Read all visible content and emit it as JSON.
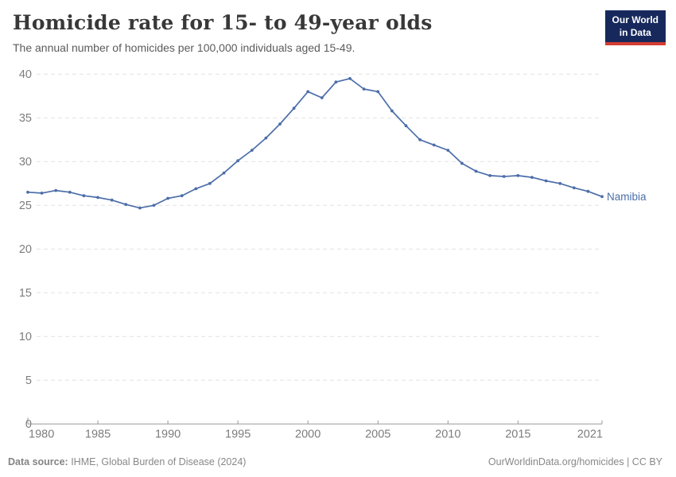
{
  "header": {
    "title": "Homicide rate for 15- to 49-year olds",
    "subtitle": "The annual number of homicides per 100,000 individuals aged 15-49.",
    "logo": {
      "line1": "Our World",
      "line2": "in Data"
    }
  },
  "footer": {
    "source_label": "Data source:",
    "source_text": " IHME, Global Burden of Disease (2024)",
    "credit": "OurWorldinData.org/homicides | CC BY"
  },
  "colors": {
    "series_line": "#4c6ea9",
    "grid": "#e2e2e2",
    "axis": "#999999",
    "tick_label": "#7d7d7d",
    "logo_bg": "#17295c",
    "logo_stripe": "#d53d32"
  },
  "chart_data": {
    "type": "line",
    "title": "Homicide rate for 15- to 49-year olds",
    "subtitle": "The annual number of homicides per 100,000 individuals aged 15-49.",
    "xlabel": "",
    "ylabel": "",
    "xlim": [
      1980,
      2021
    ],
    "ylim": [
      0,
      40
    ],
    "grid": true,
    "legend_position": "end-of-line label",
    "x_ticks": [
      1980,
      1985,
      1990,
      1995,
      2000,
      2005,
      2010,
      2015,
      2021
    ],
    "y_ticks": [
      0,
      5,
      10,
      15,
      20,
      25,
      30,
      35,
      40
    ],
    "series": [
      {
        "name": "Namibia",
        "color": "#4c6ea9",
        "x": [
          1980,
          1981,
          1982,
          1983,
          1984,
          1985,
          1986,
          1987,
          1988,
          1989,
          1990,
          1991,
          1992,
          1993,
          1994,
          1995,
          1996,
          1997,
          1998,
          1999,
          2000,
          2001,
          2002,
          2003,
          2004,
          2005,
          2006,
          2007,
          2008,
          2009,
          2010,
          2011,
          2012,
          2013,
          2014,
          2015,
          2016,
          2017,
          2018,
          2019,
          2020,
          2021
        ],
        "values": [
          26.5,
          26.4,
          26.7,
          26.5,
          26.1,
          25.9,
          25.6,
          25.1,
          24.7,
          25.0,
          25.8,
          26.1,
          26.9,
          27.5,
          28.7,
          30.1,
          31.3,
          32.7,
          34.3,
          36.1,
          38.0,
          37.3,
          39.1,
          39.5,
          38.3,
          38.0,
          35.8,
          34.1,
          32.5,
          31.9,
          31.3,
          29.8,
          28.9,
          28.4,
          28.3,
          28.4,
          28.2,
          27.8,
          27.5,
          27.0,
          26.6,
          26.0
        ]
      }
    ]
  }
}
